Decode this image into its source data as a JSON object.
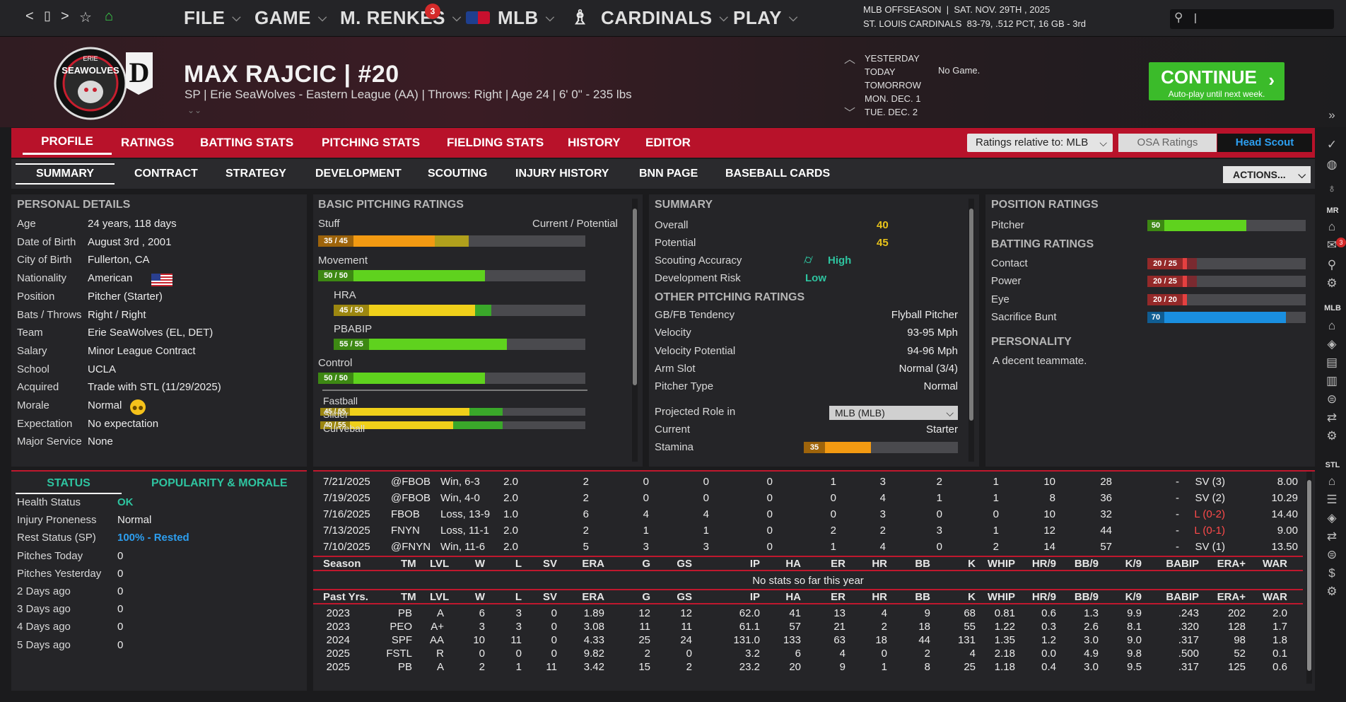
{
  "nav": {
    "back": "<",
    "window": "▯",
    "forward": ">",
    "star": "☆",
    "home": "⌂",
    "menus": [
      "FILE",
      "GAME",
      "M. RENKES",
      "MLB",
      "CARDINALS",
      "PLAY"
    ],
    "badge_count": "3",
    "status_line1": "MLB OFFSEASON  |  SAT. NOV. 29TH , 2025",
    "status_line2": "ST. LOUIS CARDINALS  83-79, .512 PCT, 16 GB - 3rd",
    "search_placeholder": "|"
  },
  "player": {
    "name": "MAX RAJCIC  |  #20",
    "subtitle": "SP | Erie SeaWolves - Eastern League (AA)  |  Throws: Right  |  Age 24  |  6' 0\"  - 235 lbs",
    "logo_text": "SEAWOLVES",
    "logo_top": "ERIE"
  },
  "schedule": {
    "rows": [
      "YESTERDAY",
      "TODAY",
      "TOMORROW",
      "MON. DEC. 1",
      "TUE. DEC. 2"
    ],
    "today_note": "No Game."
  },
  "continue": {
    "label": "CONTINUE",
    "sub": "Auto-play until next week."
  },
  "tabs_main": [
    "PROFILE",
    "RATINGS",
    "BATTING STATS",
    "PITCHING STATS",
    "FIELDING STATS",
    "HISTORY",
    "EDITOR"
  ],
  "ratings_relative": "Ratings relative to: MLB",
  "osa_ratings": "OSA Ratings",
  "head_scout": "Head Scout",
  "tabs_sub": [
    "SUMMARY",
    "CONTRACT",
    "STRATEGY",
    "DEVELOPMENT",
    "SCOUTING",
    "INJURY HISTORY",
    "BNN PAGE",
    "BASEBALL CARDS"
  ],
  "actions": "ACTIONS...",
  "personal": {
    "title": "PERSONAL DETAILS",
    "rows": [
      [
        "Age",
        "24 years, 118 days"
      ],
      [
        "Date of Birth",
        "August 3rd , 2001"
      ],
      [
        "City of Birth",
        "Fullerton, CA"
      ],
      [
        "Nationality",
        "American"
      ],
      [
        "Position",
        "Pitcher (Starter)"
      ],
      [
        "Bats / Throws",
        "Right / Right"
      ],
      [
        "Team",
        "Erie SeaWolves (EL, DET)"
      ],
      [
        "Salary",
        "Minor League Contract"
      ],
      [
        "School",
        "UCLA"
      ],
      [
        "Acquired",
        "Trade with STL (11/29/2025)"
      ],
      [
        "Morale",
        "Normal"
      ],
      [
        "Expectation",
        "No expectation"
      ],
      [
        "Major Service",
        "None"
      ]
    ]
  },
  "basic_pitching": {
    "title": "BASIC PITCHING RATINGS",
    "stuff_label": "Stuff",
    "cur_pot": "Current / Potential",
    "items": [
      {
        "label": "",
        "badge": "35 / 45",
        "cur": 35,
        "pot": 45,
        "color": "#f39a12",
        "potcolor": "#b0a01c",
        "indent": false
      },
      {
        "label": "Movement",
        "badge": "50 / 50",
        "cur": 50,
        "pot": 50,
        "color": "#5fd21e",
        "potcolor": "#5fd21e",
        "indent": false
      },
      {
        "label": "HRA",
        "badge": "45 / 50",
        "cur": 45,
        "pot": 50,
        "color": "#f0d01a",
        "potcolor": "#3aa82a",
        "indent": true
      },
      {
        "label": "PBABIP",
        "badge": "55 / 55",
        "cur": 55,
        "pot": 55,
        "color": "#5fd21e",
        "potcolor": "#5fd21e",
        "indent": true
      },
      {
        "label": "Control",
        "badge": "50 / 50",
        "cur": 50,
        "pot": 50,
        "color": "#5fd21e",
        "potcolor": "#5fd21e",
        "indent": false
      }
    ],
    "pitches": [
      {
        "label": "Fastball",
        "badge": "45 / 55",
        "cur": 45,
        "pot": 55
      },
      {
        "label": "Slider",
        "badge": "40 / 55",
        "cur": 40,
        "pot": 55
      },
      {
        "label": "Curveball",
        "badge": "",
        "cur": 0,
        "pot": 0
      }
    ]
  },
  "summary": {
    "title": "SUMMARY",
    "overall_label": "Overall",
    "overall": "40",
    "potential_label": "Potential",
    "potential": "45",
    "scout_label": "Scouting Accuracy",
    "scout": "High",
    "dev_label": "Development Risk",
    "dev": "Low",
    "other_title": "OTHER PITCHING RATINGS",
    "other": [
      [
        "GB/FB Tendency",
        "Flyball Pitcher"
      ],
      [
        "Velocity",
        "93-95 Mph"
      ],
      [
        "Velocity Potential",
        "94-96 Mph"
      ],
      [
        "Arm Slot",
        "Normal (3/4)"
      ],
      [
        "Pitcher Type",
        "Normal"
      ]
    ],
    "role_label": "Projected Role in",
    "role_select": "MLB (MLB)",
    "current_label": "Current",
    "current": "Starter",
    "stamina_label": "Stamina",
    "stamina_badge": "35",
    "stamina": 35
  },
  "position": {
    "title": "POSITION RATINGS",
    "pitcher_label": "Pitcher",
    "pitcher": "50",
    "batting_title": "BATTING RATINGS",
    "batting": [
      [
        "Contact",
        "20 / 25",
        20,
        25
      ],
      [
        "Power",
        "20 / 25",
        20,
        25
      ],
      [
        "Eye",
        "20 / 20",
        20,
        20
      ],
      [
        "Sacrifice Bunt",
        "70",
        70,
        70
      ]
    ],
    "personality_title": "PERSONALITY",
    "personality": "A decent teammate."
  },
  "status_tabs": [
    "STATUS",
    "POPULARITY & MORALE"
  ],
  "status": {
    "rows": [
      [
        "Health Status",
        "OK"
      ],
      [
        "Injury Proneness",
        "Normal"
      ],
      [
        "Rest Status (SP)",
        "100% - Rested"
      ],
      [
        "Pitches Today",
        "0"
      ],
      [
        "Pitches Yesterday",
        "0"
      ],
      [
        "2 Days ago",
        "0"
      ],
      [
        "3 Days ago",
        "0"
      ],
      [
        "4 Days ago",
        "0"
      ],
      [
        "5 Days ago",
        "0"
      ]
    ]
  },
  "games": [
    [
      "7/21/2025",
      "@FBOB",
      "Win, 6-3",
      "2.0",
      "2",
      "0",
      "0",
      "0",
      "1",
      "3",
      "2",
      "1",
      "10",
      "28",
      "-",
      "SV (3)",
      "8.00"
    ],
    [
      "7/19/2025",
      "@FBOB",
      "Win, 4-0",
      "2.0",
      "2",
      "0",
      "0",
      "0",
      "0",
      "4",
      "1",
      "1",
      "8",
      "36",
      "-",
      "SV (2)",
      "10.29"
    ],
    [
      "7/16/2025",
      "FBOB",
      "Loss, 13-9",
      "1.0",
      "6",
      "4",
      "4",
      "0",
      "0",
      "3",
      "0",
      "0",
      "10",
      "32",
      "-",
      "L (0-2)",
      "14.40"
    ],
    [
      "7/13/2025",
      "FNYN",
      "Loss, 11-1",
      "2.0",
      "2",
      "1",
      "1",
      "0",
      "2",
      "2",
      "3",
      "1",
      "12",
      "44",
      "-",
      "L (0-1)",
      "9.00"
    ],
    [
      "7/10/2025",
      "@FNYN",
      "Win, 11-6",
      "2.0",
      "5",
      "3",
      "3",
      "0",
      "1",
      "4",
      "0",
      "2",
      "14",
      "57",
      "-",
      "SV (1)",
      "13.50"
    ]
  ],
  "season_header": [
    "Season",
    "TM",
    "LVL",
    "W",
    "L",
    "SV",
    "ERA",
    "G",
    "GS",
    "IP",
    "HA",
    "ER",
    "HR",
    "BB",
    "K",
    "WHIP",
    "HR/9",
    "BB/9",
    "K/9",
    "BABIP",
    "ERA+",
    "WAR"
  ],
  "season_note": "No stats so far this year",
  "past_header": [
    "Past Yrs.",
    "TM",
    "LVL",
    "W",
    "L",
    "SV",
    "ERA",
    "G",
    "GS",
    "IP",
    "HA",
    "ER",
    "HR",
    "BB",
    "K",
    "WHIP",
    "HR/9",
    "BB/9",
    "K/9",
    "BABIP",
    "ERA+",
    "WAR"
  ],
  "past": [
    [
      "2023",
      "PB",
      "A",
      "6",
      "3",
      "0",
      "1.89",
      "12",
      "12",
      "62.0",
      "41",
      "13",
      "4",
      "9",
      "68",
      "0.81",
      "0.6",
      "1.3",
      "9.9",
      ".243",
      "202",
      "2.0"
    ],
    [
      "2023",
      "PEO",
      "A+",
      "3",
      "3",
      "0",
      "3.08",
      "11",
      "11",
      "61.1",
      "57",
      "21",
      "2",
      "18",
      "55",
      "1.22",
      "0.3",
      "2.6",
      "8.1",
      ".320",
      "128",
      "1.7"
    ],
    [
      "2024",
      "SPF",
      "AA",
      "10",
      "11",
      "0",
      "4.33",
      "25",
      "24",
      "131.0",
      "133",
      "63",
      "18",
      "44",
      "131",
      "1.35",
      "1.2",
      "3.0",
      "9.0",
      ".317",
      "98",
      "1.8"
    ],
    [
      "2025",
      "FSTL",
      "R",
      "0",
      "0",
      "0",
      "9.82",
      "2",
      "0",
      "3.2",
      "6",
      "4",
      "0",
      "2",
      "4",
      "2.18",
      "0.0",
      "4.9",
      "9.8",
      ".500",
      "52",
      "0.1"
    ],
    [
      "2025",
      "PB",
      "A",
      "2",
      "1",
      "11",
      "3.42",
      "15",
      "2",
      "23.2",
      "20",
      "9",
      "1",
      "8",
      "25",
      "1.18",
      "0.4",
      "3.0",
      "9.5",
      ".317",
      "125",
      "0.6"
    ]
  ],
  "sidebar": {
    "mr": "MR",
    "mlb": "MLB",
    "stl": "STL",
    "mail_badge": "3"
  },
  "colors": {
    "accent": "#b8122a",
    "continue": "#3bbb2a",
    "green": "#5fd21e",
    "orange": "#f39a12",
    "yellow": "#f0d01a",
    "blue": "#1a8fe0",
    "red": "#e44040"
  }
}
